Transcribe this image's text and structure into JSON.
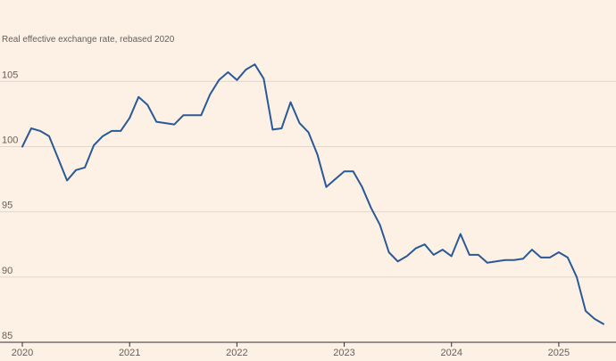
{
  "chart_data": {
    "type": "line",
    "subtitle": "Real effective exchange rate, rebased 2020",
    "ylim": [
      85,
      107
    ],
    "yticks": [
      85,
      90,
      95,
      100,
      105
    ],
    "xlim": [
      "2020-01",
      "2025-06"
    ],
    "xticks": [
      "2020",
      "2021",
      "2022",
      "2023",
      "2024",
      "2025"
    ],
    "grid": true,
    "colors": {
      "background": "#fdf1e6",
      "line": "#2a5a95",
      "grid": "#e0d6cc",
      "axis": "#33302e",
      "text": "#66605c"
    },
    "series": [
      {
        "x": [
          "2020-01",
          "2020-02",
          "2020-03",
          "2020-04",
          "2020-05",
          "2020-06",
          "2020-07",
          "2020-08",
          "2020-09",
          "2020-10",
          "2020-11",
          "2020-12",
          "2021-01",
          "2021-02",
          "2021-03",
          "2021-04",
          "2021-05",
          "2021-06",
          "2021-07",
          "2021-08",
          "2021-09",
          "2021-10",
          "2021-11",
          "2021-12",
          "2022-01",
          "2022-02",
          "2022-03",
          "2022-04",
          "2022-05",
          "2022-06",
          "2022-07",
          "2022-08",
          "2022-09",
          "2022-10",
          "2022-11",
          "2022-12",
          "2023-01",
          "2023-02",
          "2023-03",
          "2023-04",
          "2023-05",
          "2023-06",
          "2023-07",
          "2023-08",
          "2023-09",
          "2023-10",
          "2023-11",
          "2023-12",
          "2024-01",
          "2024-02",
          "2024-03",
          "2024-04",
          "2024-05",
          "2024-06",
          "2024-07",
          "2024-08",
          "2024-09",
          "2024-10",
          "2024-11",
          "2024-12",
          "2025-01",
          "2025-02",
          "2025-03",
          "2025-04",
          "2025-05",
          "2025-06"
        ],
        "y": [
          100.0,
          101.4,
          101.2,
          100.8,
          99.1,
          97.4,
          98.2,
          98.4,
          100.1,
          100.8,
          101.2,
          101.2,
          102.2,
          103.8,
          103.2,
          101.9,
          101.8,
          101.7,
          102.4,
          102.4,
          102.4,
          104.0,
          105.1,
          105.7,
          105.1,
          105.9,
          106.3,
          105.2,
          101.3,
          101.4,
          103.4,
          101.8,
          101.1,
          99.4,
          96.9,
          97.5,
          98.1,
          98.1,
          96.9,
          95.3,
          94.0,
          91.9,
          91.2,
          91.6,
          92.2,
          92.5,
          91.7,
          92.1,
          91.6,
          93.3,
          91.7,
          91.7,
          91.1,
          91.2,
          91.3,
          91.3,
          91.4,
          92.1,
          91.5,
          91.5,
          91.9,
          91.5,
          90.0,
          87.4,
          86.8,
          86.4
        ]
      }
    ]
  }
}
